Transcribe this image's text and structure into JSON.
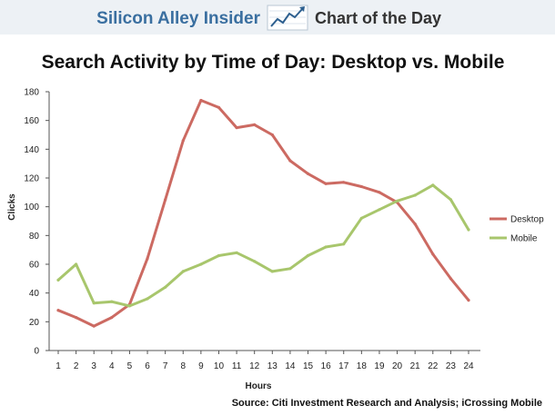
{
  "header": {
    "brand": "Silicon Alley Insider",
    "section": "Chart of the Day",
    "logo_icon": "trend-line-logo-icon"
  },
  "source": "Source: Citi Investment Research and Analysis; iCrossing Mobile",
  "colors": {
    "header_bg": "#edf1f5",
    "brand_text": "#3a6fa0",
    "section_text": "#333333",
    "desktop": "#cc6a62",
    "mobile": "#a8c66c",
    "axis": "#555555"
  },
  "chart_data": {
    "type": "line",
    "title": "Search Activity by Time of Day: Desktop vs. Mobile",
    "xlabel": "Hours",
    "ylabel": "Clicks",
    "x": [
      1,
      2,
      3,
      4,
      5,
      6,
      7,
      8,
      9,
      10,
      11,
      12,
      13,
      14,
      15,
      16,
      17,
      18,
      19,
      20,
      21,
      22,
      23,
      24
    ],
    "xlim": [
      1,
      24
    ],
    "ylim": [
      0,
      180
    ],
    "yticks": [
      0,
      20,
      40,
      60,
      80,
      100,
      120,
      140,
      160,
      180
    ],
    "grid": false,
    "legend": "right",
    "series": [
      {
        "name": "Desktop",
        "color": "#cc6a62",
        "values": [
          28,
          23,
          17,
          23,
          32,
          64,
          105,
          146,
          174,
          169,
          155,
          157,
          150,
          132,
          123,
          116,
          117,
          114,
          110,
          103,
          88,
          67,
          50,
          35
        ]
      },
      {
        "name": "Mobile",
        "color": "#a8c66c",
        "values": [
          49,
          60,
          33,
          34,
          31,
          36,
          44,
          55,
          60,
          66,
          68,
          62,
          55,
          57,
          66,
          72,
          74,
          92,
          98,
          104,
          108,
          115,
          105,
          84
        ]
      }
    ]
  }
}
